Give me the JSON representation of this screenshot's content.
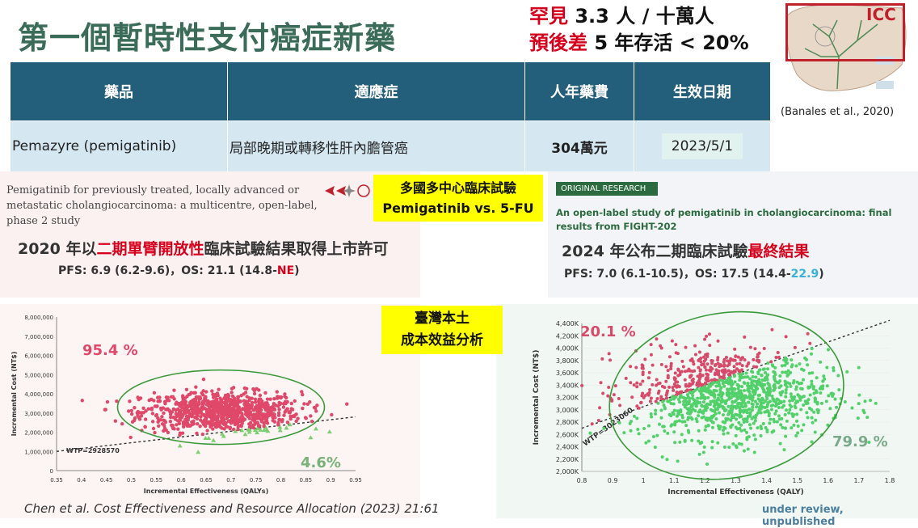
{
  "title": "第一個暫時性支付癌症新藥",
  "rare": {
    "line1_red": "罕見",
    "line1_black": "3.3 人 / 十萬人",
    "line2_red": "預後差",
    "line2_black": "5 年存活 < 20%"
  },
  "icc": {
    "label": "ICC",
    "citation": "(Banales et al., 2020)"
  },
  "table": {
    "headers": [
      "藥品",
      "適應症",
      "人年藥費",
      "生效日期"
    ],
    "row": {
      "drug": "Pemazyre (pemigatinib)",
      "indication": "局部晚期或轉移性肝內膽管癌",
      "cost": "304萬元",
      "date": "2023/5/1"
    }
  },
  "left_panel": {
    "paper_title": "Pemigatinib for previously treated, locally advanced or metastatic cholangiocarcinoma: a multicentre, open-label, phase 2 study",
    "badge_line1": "多國多中心臨床試驗",
    "badge_line2": "Pemigatinib vs. 5-FU",
    "result_pre": "2020 年以",
    "result_red": "二期單臂開放性",
    "result_post": "臨床試驗結果取得上市許可",
    "pfs_pre": "PFS:  6.9 (6.2-9.6)，OS:  21.1 (14.8-",
    "pfs_red": "NE",
    "pfs_post": ")"
  },
  "right_panel": {
    "badge": "ORIGINAL RESEARCH",
    "paper_title": "An open-label study of pemigatinib in cholangiocarcinoma: final results from FIGHT-202",
    "result_pre": "2024 年公布二期臨床試驗",
    "result_red": "最終結果",
    "pfs_pre": "PFS:  7.0 (6.1-10.5)，OS:  17.5 (14.4-",
    "pfs_blue": "22.9",
    "pfs_post": ")"
  },
  "mid_badge": {
    "line1": "臺灣本土",
    "line2": "成本效益分析"
  },
  "chart_data": [
    {
      "type": "scatter",
      "xlabel": "Incremental Effectiveness (QALYs)",
      "ylabel": "Incremental Cost (NT$)",
      "xlim": [
        0.35,
        0.95
      ],
      "ylim": [
        0,
        8000000
      ],
      "x_ticks": [
        "0.35",
        "0.4",
        "0.45",
        "0.5",
        "0.55",
        "0.6",
        "0.65",
        "0.7",
        "0.75",
        "0.8",
        "0.85",
        "0.9",
        "0.95"
      ],
      "y_ticks": [
        "0",
        "1,000,000",
        "2,000,000",
        "3,000,000",
        "4,000,000",
        "5,000,000",
        "6,000,000",
        "7,000,000",
        "8,000,000"
      ],
      "wtp_label": "WTP=2928570",
      "pct_above": "95.4 %",
      "pct_below": "4.6%",
      "colors": {
        "above": "#e0486a",
        "below": "#7ccf6f",
        "ellipse": "#3a9a3a"
      }
    },
    {
      "type": "scatter",
      "xlabel": "Incremental Effectiveness",
      "xlabel_unit": "(QALY)",
      "ylabel": "Incremental Cost (NT$)",
      "xlim": [
        0.8,
        1.8
      ],
      "ylim": [
        2000,
        4400
      ],
      "x_ticks": [
        "0.8",
        "0.9",
        "1",
        "1.1",
        "1.2",
        "1.3",
        "1.4",
        "1.5",
        "1.6",
        "1.7",
        "1.8"
      ],
      "y_ticks": [
        "2,000K",
        "2,200K",
        "2,400K",
        "2,600K",
        "2,800K",
        "3,000K",
        "3,200K",
        "3,400K",
        "3,600K",
        "3,800K",
        "4,000K",
        "4,200K",
        "4,400K"
      ],
      "wtp_label": "WTP=3023060",
      "pct_above": "20.1 %",
      "pct_below": "79.9 %",
      "colors": {
        "above": "#d84a6a",
        "below": "#52d06a",
        "ellipse": "#3a9a3a"
      }
    }
  ],
  "citation_chen": "Chen et al. Cost Effectiveness and Resource Allocation        (2023) 21:61",
  "unpublished": "under review, unpublished"
}
